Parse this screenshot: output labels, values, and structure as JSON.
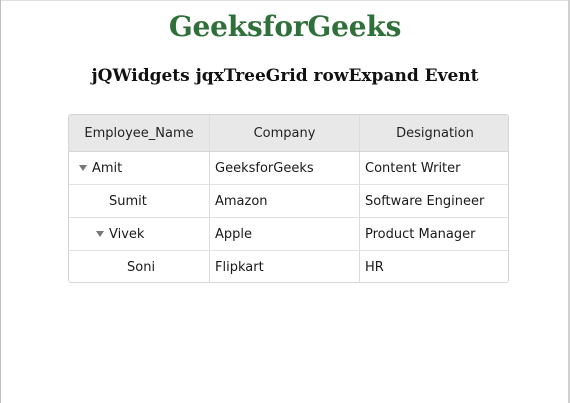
{
  "page": {
    "title": "GeeksforGeeks",
    "heading": "jQWidgets jqxTreeGrid rowExpand Event",
    "title_color": "#2f6f3a"
  },
  "grid": {
    "columns": [
      "Employee_Name",
      "Company",
      "Designation"
    ],
    "rows": [
      {
        "name": "Amit",
        "company": "GeeksforGeeks",
        "designation": "Content Writer",
        "level": 0,
        "expanded": true,
        "toggle_icon": "triangle-down-icon"
      },
      {
        "name": "Sumit",
        "company": "Amazon",
        "designation": "Software Engineer",
        "level": 1,
        "expanded": null
      },
      {
        "name": "Vivek",
        "company": "Apple",
        "designation": "Product Manager",
        "level": 1,
        "expanded": true,
        "toggle_icon": "triangle-down-icon"
      },
      {
        "name": "Soni",
        "company": "Flipkart",
        "designation": "HR",
        "level": 2,
        "expanded": null
      }
    ]
  }
}
